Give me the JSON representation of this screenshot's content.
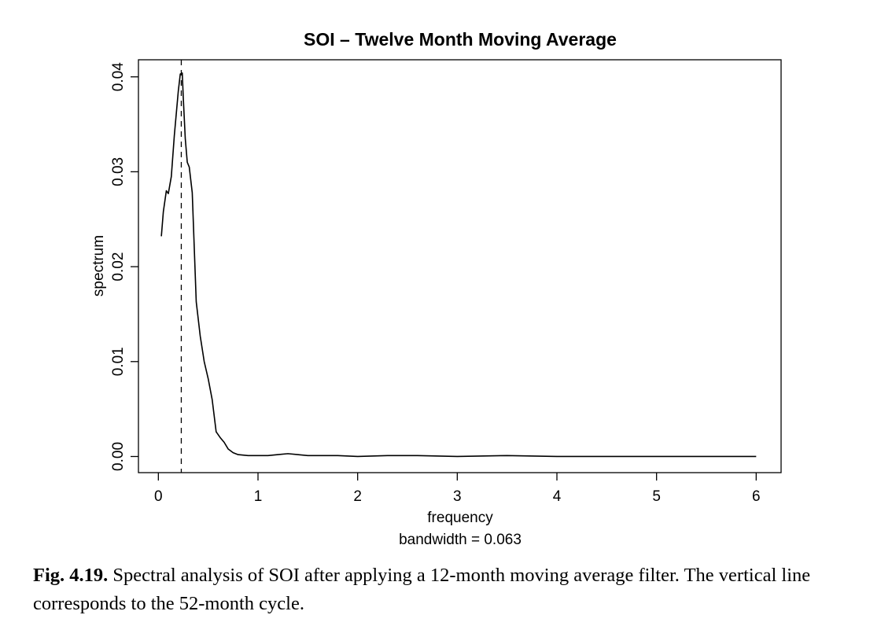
{
  "chart_data": {
    "type": "line",
    "title": "SOI – Twelve Month Moving Average",
    "xlabel": "frequency",
    "xlabel_sub": "bandwidth = 0.063",
    "ylabel": "spectrum",
    "xlim": [
      -0.2,
      6.25
    ],
    "ylim": [
      -0.0017,
      0.0418
    ],
    "x_ticks": [
      0,
      1,
      2,
      3,
      4,
      5,
      6
    ],
    "y_ticks": [
      0.0,
      0.01,
      0.02,
      0.03,
      0.04
    ],
    "x_tick_labels": [
      "0",
      "1",
      "2",
      "3",
      "4",
      "5",
      "6"
    ],
    "y_tick_labels": [
      "0.00",
      "0.01",
      "0.02",
      "0.03",
      "0.04"
    ],
    "grid": false,
    "legend": "none",
    "vertical_line": {
      "x": 0.23,
      "style": "dashed"
    },
    "series": [
      {
        "x": [
          0.03,
          0.05,
          0.08,
          0.1,
          0.13,
          0.16,
          0.2,
          0.22,
          0.24,
          0.25,
          0.27,
          0.29,
          0.31,
          0.34,
          0.38,
          0.42,
          0.46,
          0.5,
          0.54,
          0.58,
          0.62,
          0.66,
          0.7,
          0.75,
          0.8,
          0.9,
          1.0,
          1.1,
          1.2,
          1.3,
          1.4,
          1.5,
          1.8,
          2.0,
          2.3,
          2.6,
          3.0,
          3.5,
          4.0,
          4.5,
          5.0,
          5.5,
          6.0
        ],
        "values": [
          0.0232,
          0.0258,
          0.028,
          0.0277,
          0.0295,
          0.0338,
          0.0385,
          0.0403,
          0.0404,
          0.0378,
          0.0335,
          0.031,
          0.0305,
          0.0278,
          0.0163,
          0.0127,
          0.01,
          0.0082,
          0.006,
          0.0026,
          0.002,
          0.0015,
          0.0008,
          0.0004,
          0.0002,
          0.0001,
          0.0001,
          0.0001,
          0.0002,
          0.0003,
          0.0002,
          0.0001,
          0.0001,
          0.0,
          0.0001,
          0.0001,
          0.0,
          0.0001,
          0.0,
          0.0,
          0.0,
          0.0,
          0.0
        ]
      }
    ]
  },
  "caption": {
    "label": "Fig. 4.19.",
    "text": " Spectral analysis of SOI after applying a 12-month moving average filter. The vertical line corresponds to the 52-month cycle."
  }
}
